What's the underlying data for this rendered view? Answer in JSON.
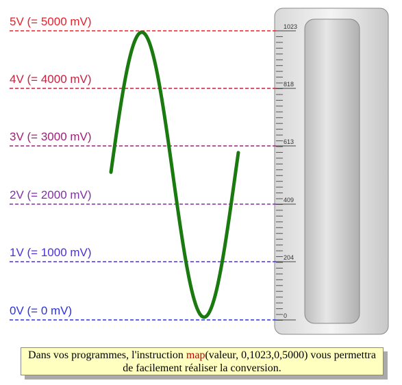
{
  "levels": [
    {
      "label": "5V (= 5000 mV)",
      "color": "#e8202a"
    },
    {
      "label": "4V (= 4000 mV)",
      "color": "#c8203e"
    },
    {
      "label": "3V (= 3000 mV)",
      "color": "#a02078"
    },
    {
      "label": "2V (= 2000 mV)",
      "color": "#8030a8"
    },
    {
      "label": "1V (= 1000 mV)",
      "color": "#4a30d8"
    },
    {
      "label": "0V (= 0 mV)",
      "color": "#2a30e0"
    }
  ],
  "ruler": {
    "labels": [
      "1023",
      "818",
      "613",
      "409",
      "204",
      "0"
    ]
  },
  "caption": {
    "before": "Dans vos programmes, l'instruction ",
    "keyword": "map",
    "after": "(valeur, 0,1023,0,5000) vous permettra de facilement réaliser la conversion."
  }
}
